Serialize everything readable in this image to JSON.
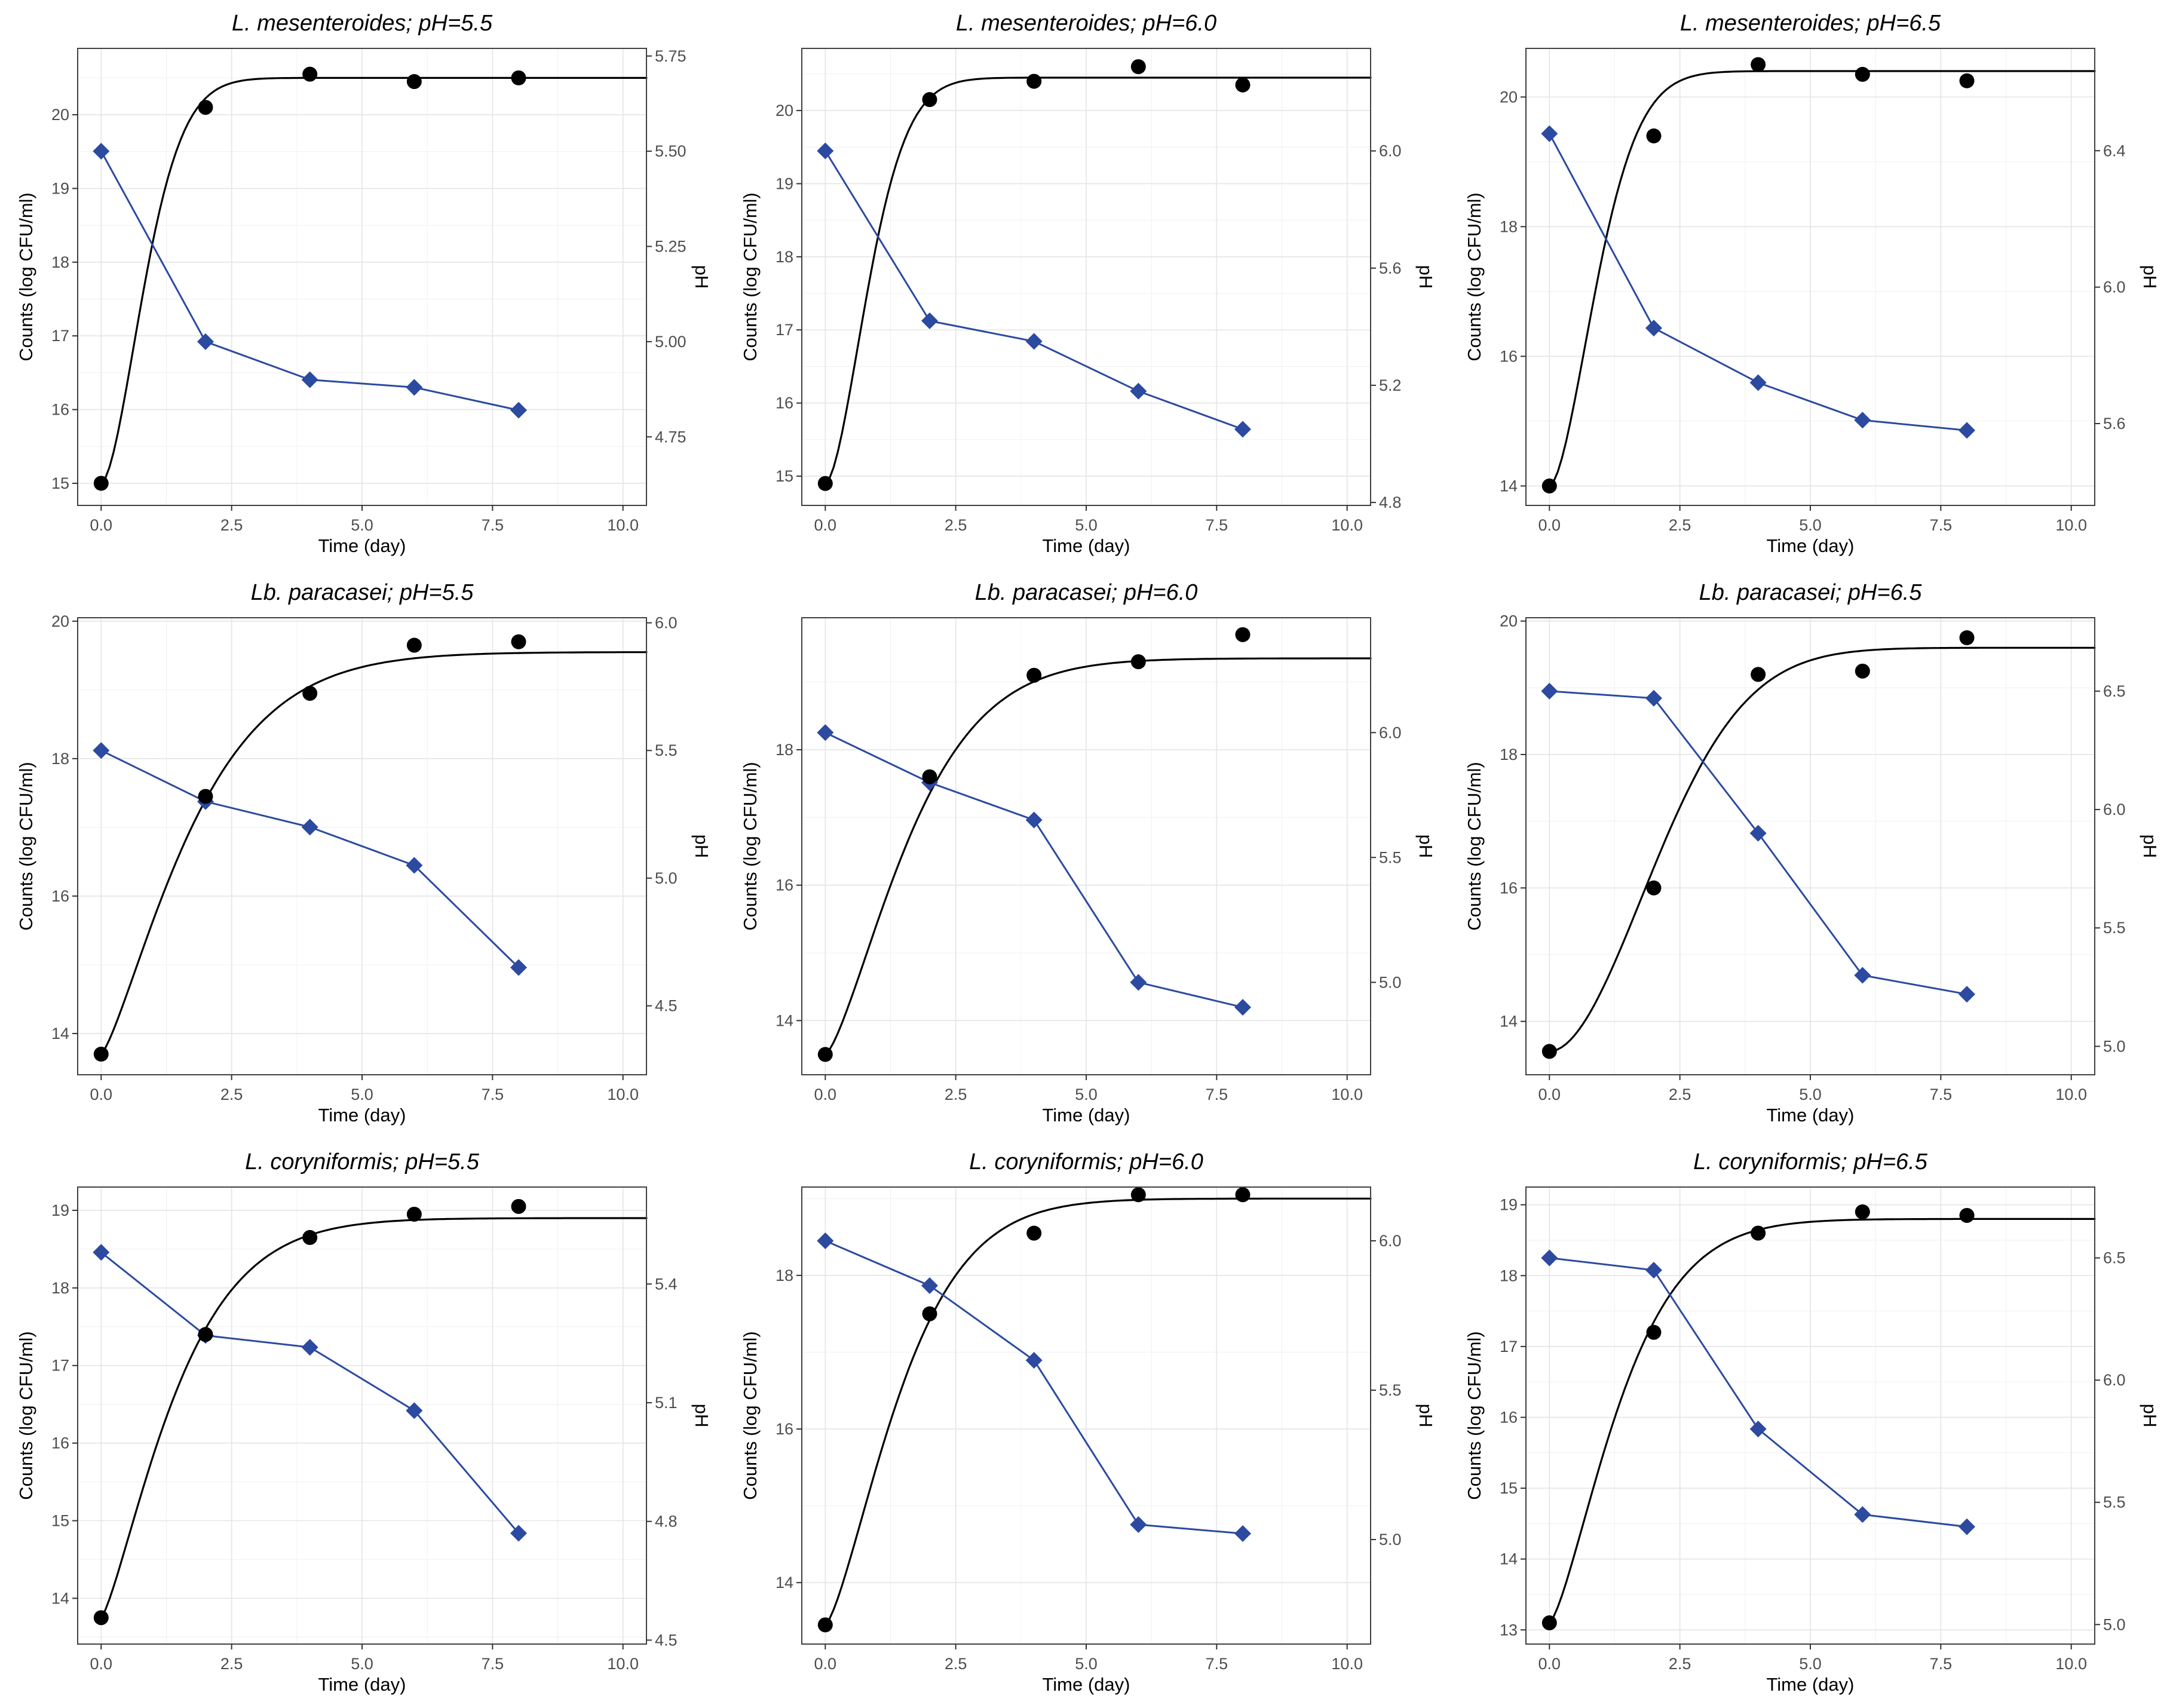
{
  "style": {
    "counts_color": "#000000",
    "ph_color": "#2b4aa0",
    "grid_major": "#e4e4e4",
    "grid_minor": "#f0f0f0",
    "border": "#404040",
    "tick": "#333333",
    "tick_label_color": "#4d4d4d"
  },
  "chart_data": [
    {
      "type": "line",
      "title": "L. mesenteroides; pH=5.5",
      "xlabel": "Time (day)",
      "ylabel_left": "Counts (log CFU/ml)",
      "ylabel_right": "pH",
      "x": [
        0,
        2,
        4,
        6,
        8
      ],
      "xlim": [
        -0.45,
        10.45
      ],
      "xticks": [
        0,
        2.5,
        5,
        7.5,
        10
      ],
      "xtick_labels": [
        "0.0",
        "2.5",
        "5.0",
        "7.5",
        "10.0"
      ],
      "grid": true,
      "legend": false,
      "left": {
        "ylim": [
          14.7,
          20.9
        ],
        "ticks": [
          15,
          16,
          17,
          18,
          19,
          20
        ],
        "tick_labels": [
          "15",
          "16",
          "17",
          "18",
          "19",
          "20"
        ],
        "counts": [
          15.0,
          20.1,
          20.55,
          20.45,
          20.5
        ],
        "fit": {
          "y0": 15.0,
          "K": 20.5,
          "tau": 1.05,
          "p": 1.7
        }
      },
      "right": {
        "ylim": [
          4.57,
          5.77
        ],
        "ticks": [
          4.75,
          5.0,
          5.25,
          5.5,
          5.75
        ],
        "tick_labels": [
          "4.75",
          "5.00",
          "5.25",
          "5.50",
          "5.75"
        ],
        "ph": [
          5.5,
          5.0,
          4.9,
          4.88,
          4.82
        ]
      }
    },
    {
      "type": "line",
      "title": "L. mesenteroides; pH=6.0",
      "xlabel": "Time (day)",
      "ylabel_left": "Counts (log CFU/ml)",
      "ylabel_right": "pH",
      "x": [
        0,
        2,
        4,
        6,
        8
      ],
      "xlim": [
        -0.45,
        10.45
      ],
      "xticks": [
        0,
        2.5,
        5,
        7.5,
        10
      ],
      "xtick_labels": [
        "0.0",
        "2.5",
        "5.0",
        "7.5",
        "10.0"
      ],
      "grid": true,
      "legend": false,
      "left": {
        "ylim": [
          14.6,
          20.85
        ],
        "ticks": [
          15,
          16,
          17,
          18,
          19,
          20
        ],
        "tick_labels": [
          "15",
          "16",
          "17",
          "18",
          "19",
          "20"
        ],
        "counts": [
          14.9,
          20.15,
          20.4,
          20.6,
          20.35
        ],
        "fit": {
          "y0": 14.9,
          "K": 20.45,
          "tau": 1.05,
          "p": 1.7
        }
      },
      "right": {
        "ylim": [
          4.79,
          6.35
        ],
        "ticks": [
          4.8,
          5.2,
          5.6,
          6.0
        ],
        "tick_labels": [
          "4.8",
          "5.2",
          "5.6",
          "6.0"
        ],
        "ph": [
          6.0,
          5.42,
          5.35,
          5.18,
          5.05
        ]
      }
    },
    {
      "type": "line",
      "title": "L. mesenteroides; pH=6.5",
      "xlabel": "Time (day)",
      "ylabel_left": "Counts (log CFU/ml)",
      "ylabel_right": "pH",
      "x": [
        0,
        2,
        4,
        6,
        8
      ],
      "xlim": [
        -0.45,
        10.45
      ],
      "xticks": [
        0,
        2.5,
        5,
        7.5,
        10
      ],
      "xtick_labels": [
        "0.0",
        "2.5",
        "5.0",
        "7.5",
        "10.0"
      ],
      "grid": true,
      "legend": false,
      "left": {
        "ylim": [
          13.7,
          20.75
        ],
        "ticks": [
          14,
          16,
          18,
          20
        ],
        "tick_labels": [
          "14",
          "16",
          "18",
          "20"
        ],
        "counts": [
          14.0,
          19.4,
          20.5,
          20.35,
          20.25
        ],
        "fit": {
          "y0": 14.0,
          "K": 20.4,
          "tau": 1.15,
          "p": 1.7
        }
      },
      "right": {
        "ylim": [
          5.36,
          6.7
        ],
        "ticks": [
          5.6,
          6.0,
          6.4
        ],
        "tick_labels": [
          "5.6",
          "6.0",
          "6.4"
        ],
        "ph": [
          6.45,
          5.88,
          5.72,
          5.61,
          5.58
        ]
      }
    },
    {
      "type": "line",
      "title": "Lb. paracasei; pH=5.5",
      "xlabel": "Time (day)",
      "ylabel_left": "Counts (log CFU/ml)",
      "ylabel_right": "pH",
      "x": [
        0,
        2,
        4,
        6,
        8
      ],
      "xlim": [
        -0.45,
        10.45
      ],
      "xticks": [
        0,
        2.5,
        5,
        7.5,
        10
      ],
      "xtick_labels": [
        "0.0",
        "2.5",
        "5.0",
        "7.5",
        "10.0"
      ],
      "grid": true,
      "legend": false,
      "left": {
        "ylim": [
          13.4,
          20.05
        ],
        "ticks": [
          14,
          16,
          18,
          20
        ],
        "tick_labels": [
          "14",
          "16",
          "18",
          "20"
        ],
        "counts": [
          13.7,
          17.45,
          18.95,
          19.65,
          19.7
        ],
        "fit": {
          "y0": 13.7,
          "K": 19.55,
          "tau": 2.0,
          "p": 1.3
        }
      },
      "right": {
        "ylim": [
          4.23,
          6.02
        ],
        "ticks": [
          4.5,
          5.0,
          5.5,
          6.0
        ],
        "tick_labels": [
          "4.5",
          "5.0",
          "5.5",
          "6.0"
        ],
        "ph": [
          5.5,
          5.3,
          5.2,
          5.05,
          4.65
        ]
      }
    },
    {
      "type": "line",
      "title": "Lb. paracasei; pH=6.0",
      "xlabel": "Time (day)",
      "ylabel_left": "Counts (log CFU/ml)",
      "ylabel_right": "pH",
      "x": [
        0,
        2,
        4,
        6,
        8
      ],
      "xlim": [
        -0.45,
        10.45
      ],
      "xticks": [
        0,
        2.5,
        5,
        7.5,
        10
      ],
      "xtick_labels": [
        "0.0",
        "2.5",
        "5.0",
        "7.5",
        "10.0"
      ],
      "grid": true,
      "legend": false,
      "left": {
        "ylim": [
          13.2,
          19.95
        ],
        "ticks": [
          14,
          16,
          18
        ],
        "tick_labels": [
          "14",
          "16",
          "18"
        ],
        "counts": [
          13.5,
          17.6,
          19.1,
          19.3,
          19.7
        ],
        "fit": {
          "y0": 13.5,
          "K": 19.35,
          "tau": 1.9,
          "p": 1.4
        }
      },
      "right": {
        "ylim": [
          4.63,
          6.46
        ],
        "ticks": [
          5.0,
          5.5,
          6.0
        ],
        "tick_labels": [
          "5.0",
          "5.5",
          "6.0"
        ],
        "ph": [
          6.0,
          5.8,
          5.65,
          5.0,
          4.9
        ]
      }
    },
    {
      "type": "line",
      "title": "Lb. paracasei; pH=6.5",
      "xlabel": "Time (day)",
      "ylabel_left": "Counts (log CFU/ml)",
      "ylabel_right": "pH",
      "x": [
        0,
        2,
        4,
        6,
        8
      ],
      "xlim": [
        -0.45,
        10.45
      ],
      "xticks": [
        0,
        2.5,
        5,
        7.5,
        10
      ],
      "xtick_labels": [
        "0.0",
        "2.5",
        "5.0",
        "7.5",
        "10.0"
      ],
      "grid": true,
      "legend": false,
      "left": {
        "ylim": [
          13.2,
          20.05
        ],
        "ticks": [
          14,
          16,
          18,
          20
        ],
        "tick_labels": [
          "14",
          "16",
          "18",
          "20"
        ],
        "counts": [
          13.55,
          16.0,
          19.2,
          19.25,
          19.75
        ],
        "fit": {
          "y0": 13.55,
          "K": 19.6,
          "tau": 2.6,
          "p": 1.9
        }
      },
      "right": {
        "ylim": [
          4.88,
          6.81
        ],
        "ticks": [
          5.0,
          5.5,
          6.0,
          6.5
        ],
        "tick_labels": [
          "5.0",
          "5.5",
          "6.0",
          "6.5"
        ],
        "ph": [
          6.5,
          6.47,
          5.9,
          5.3,
          5.22
        ]
      }
    },
    {
      "type": "line",
      "title": "L. coryniformis; pH=5.5",
      "xlabel": "Time (day)",
      "ylabel_left": "Counts (log CFU/ml)",
      "ylabel_right": "pH",
      "x": [
        0,
        2,
        4,
        6,
        8
      ],
      "xlim": [
        -0.45,
        10.45
      ],
      "xticks": [
        0,
        2.5,
        5,
        7.5,
        10
      ],
      "xtick_labels": [
        "0.0",
        "2.5",
        "5.0",
        "7.5",
        "10.0"
      ],
      "grid": true,
      "legend": false,
      "left": {
        "ylim": [
          13.41,
          19.3
        ],
        "ticks": [
          14,
          15,
          16,
          17,
          18,
          19
        ],
        "tick_labels": [
          "14",
          "15",
          "16",
          "17",
          "18",
          "19"
        ],
        "counts": [
          13.75,
          17.4,
          18.65,
          18.95,
          19.05
        ],
        "fit": {
          "y0": 13.75,
          "K": 18.9,
          "tau": 1.65,
          "p": 1.3
        }
      },
      "right": {
        "ylim": [
          4.49,
          5.645
        ],
        "ticks": [
          4.5,
          4.8,
          5.1,
          5.4
        ],
        "tick_labels": [
          "4.5",
          "4.8",
          "5.1",
          "5.4"
        ],
        "ph": [
          5.48,
          5.27,
          5.24,
          5.08,
          4.77
        ]
      }
    },
    {
      "type": "line",
      "title": "L. coryniformis; pH=6.0",
      "xlabel": "Time (day)",
      "ylabel_left": "Counts (log CFU/ml)",
      "ylabel_right": "pH",
      "x": [
        0,
        2,
        4,
        6,
        8
      ],
      "xlim": [
        -0.45,
        10.45
      ],
      "xticks": [
        0,
        2.5,
        5,
        7.5,
        10
      ],
      "xtick_labels": [
        "0.0",
        "2.5",
        "5.0",
        "7.5",
        "10.0"
      ],
      "grid": true,
      "legend": false,
      "left": {
        "ylim": [
          13.2,
          19.15
        ],
        "ticks": [
          14,
          16,
          18
        ],
        "tick_labels": [
          "14",
          "16",
          "18"
        ],
        "counts": [
          13.45,
          17.5,
          18.55,
          19.05,
          19.05
        ],
        "fit": {
          "y0": 13.45,
          "K": 19.0,
          "tau": 1.7,
          "p": 1.4
        }
      },
      "right": {
        "ylim": [
          4.65,
          6.18
        ],
        "ticks": [
          5.0,
          5.5,
          6.0
        ],
        "tick_labels": [
          "5.0",
          "5.5",
          "6.0"
        ],
        "ph": [
          6.0,
          5.85,
          5.6,
          5.05,
          5.02
        ]
      }
    },
    {
      "type": "line",
      "title": "L. coryniformis; pH=6.5",
      "xlabel": "Time (day)",
      "ylabel_left": "Counts (log CFU/ml)",
      "ylabel_right": "pH",
      "x": [
        0,
        2,
        4,
        6,
        8
      ],
      "xlim": [
        -0.45,
        10.45
      ],
      "xticks": [
        0,
        2.5,
        5,
        7.5,
        10
      ],
      "xtick_labels": [
        "0.0",
        "2.5",
        "5.0",
        "7.5",
        "10.0"
      ],
      "grid": true,
      "legend": false,
      "left": {
        "ylim": [
          12.8,
          19.25
        ],
        "ticks": [
          13,
          14,
          15,
          16,
          17,
          18,
          19
        ],
        "tick_labels": [
          "13",
          "14",
          "15",
          "16",
          "17",
          "18",
          "19"
        ],
        "counts": [
          13.1,
          17.2,
          18.6,
          18.9,
          18.85
        ],
        "fit": {
          "y0": 13.1,
          "K": 18.8,
          "tau": 1.6,
          "p": 1.4
        }
      },
      "right": {
        "ylim": [
          4.92,
          6.79
        ],
        "ticks": [
          5.0,
          5.5,
          6.0,
          6.5
        ],
        "tick_labels": [
          "5.0",
          "5.5",
          "6.0",
          "6.5"
        ],
        "ph": [
          6.5,
          6.45,
          5.8,
          5.45,
          5.4
        ]
      }
    }
  ]
}
